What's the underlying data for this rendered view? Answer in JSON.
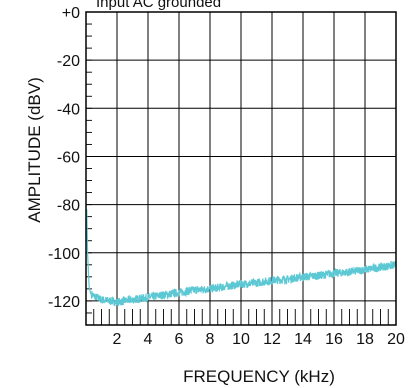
{
  "chart_data": {
    "type": "line",
    "title": "",
    "annotation": "Input AC grounded",
    "xlabel": "FREQUENCY (kHz)",
    "ylabel": "AMPLITUDE (dBV)",
    "xlim": [
      0,
      20
    ],
    "ylim": [
      -130,
      0
    ],
    "x_ticks": [
      2,
      4,
      6,
      8,
      10,
      12,
      14,
      16,
      18,
      20
    ],
    "x_tick_labels": [
      "2",
      "4",
      "6",
      "8",
      "10",
      "12",
      "14",
      "16",
      "18",
      "20"
    ],
    "y_ticks": [
      0,
      -20,
      -40,
      -60,
      -80,
      -100,
      -120
    ],
    "y_tick_labels": [
      "+0",
      "-20",
      "-40",
      "-60",
      "-80",
      "-100",
      "-120"
    ],
    "grid": true,
    "series": [
      {
        "color": "#5bc8d4",
        "x": [
          0.05,
          0.1,
          0.2,
          0.3,
          0.5,
          1,
          1.5,
          2,
          2.5,
          3,
          4,
          5,
          6,
          7,
          8,
          9,
          10,
          11,
          12,
          13,
          14,
          15,
          16,
          17,
          18,
          19,
          20
        ],
        "y": [
          -82,
          -100,
          -114,
          -117,
          -118,
          -119.5,
          -120,
          -120.5,
          -120,
          -119.5,
          -118.5,
          -117.5,
          -116.5,
          -115.5,
          -115,
          -114,
          -113,
          -112.5,
          -111.5,
          -111,
          -110,
          -109.5,
          -108.5,
          -108,
          -107,
          -106,
          -105
        ]
      }
    ]
  }
}
